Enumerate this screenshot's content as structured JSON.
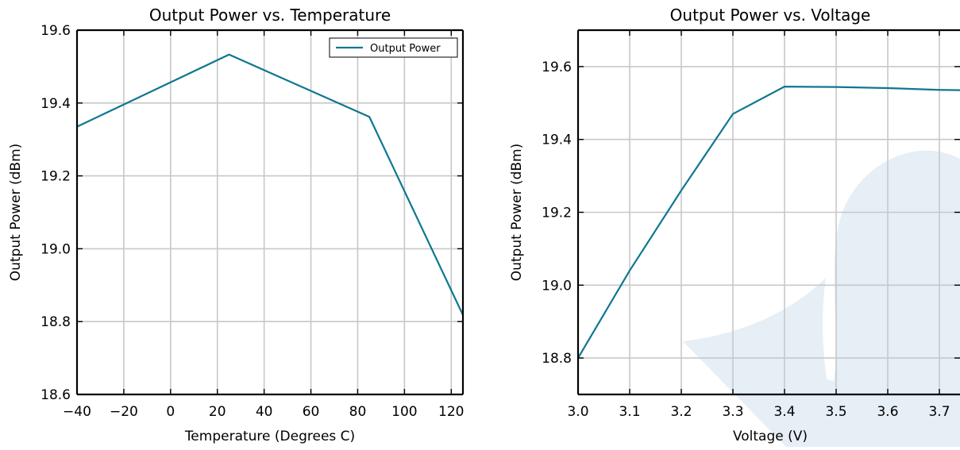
{
  "chart_data": [
    {
      "type": "line",
      "title": "Output Power vs. Temperature",
      "xlabel": "Temperature (Degrees C)",
      "ylabel": "Output Power (dBm)",
      "xlim": [
        -40,
        125
      ],
      "ylim": [
        18.6,
        19.6
      ],
      "xticks": [
        -40,
        -20,
        0,
        20,
        40,
        60,
        80,
        100,
        120
      ],
      "xtick_labels": [
        "−40",
        "−20",
        "0",
        "20",
        "40",
        "60",
        "80",
        "100",
        "120"
      ],
      "yticks": [
        18.6,
        18.8,
        19.0,
        19.2,
        19.4,
        19.6
      ],
      "ytick_labels": [
        "18.6",
        "18.8",
        "19.0",
        "19.2",
        "19.4",
        "19.6"
      ],
      "grid": true,
      "legend": "top-right",
      "series": [
        {
          "name": "Output Power",
          "color": "#0f7791",
          "x": [
            -40,
            25,
            85,
            125
          ],
          "y": [
            19.335,
            19.533,
            19.362,
            18.818
          ]
        }
      ]
    },
    {
      "type": "line",
      "title": "Output Power vs. Voltage",
      "xlabel": "Voltage (V)",
      "ylabel": "Output Power (dBm)",
      "xlim": [
        3.0,
        3.8
      ],
      "ylim": [
        18.7,
        19.7
      ],
      "xticks": [
        3.0,
        3.1,
        3.2,
        3.3,
        3.4,
        3.5,
        3.6,
        3.7
      ],
      "xtick_labels": [
        "3.0",
        "3.1",
        "3.2",
        "3.3",
        "3.4",
        "3.5",
        "3.6",
        "3.7"
      ],
      "yticks": [
        18.8,
        19.0,
        19.2,
        19.4,
        19.6
      ],
      "ytick_labels": [
        "18.8",
        "19.0",
        "19.2",
        "19.4",
        "19.6"
      ],
      "grid": true,
      "series": [
        {
          "color": "#0f7791",
          "x": [
            3.0,
            3.1,
            3.2,
            3.3,
            3.4,
            3.5,
            3.6,
            3.7,
            3.8
          ],
          "y": [
            18.8,
            19.04,
            19.26,
            19.47,
            19.545,
            19.544,
            19.541,
            19.536,
            19.534
          ]
        }
      ]
    }
  ]
}
